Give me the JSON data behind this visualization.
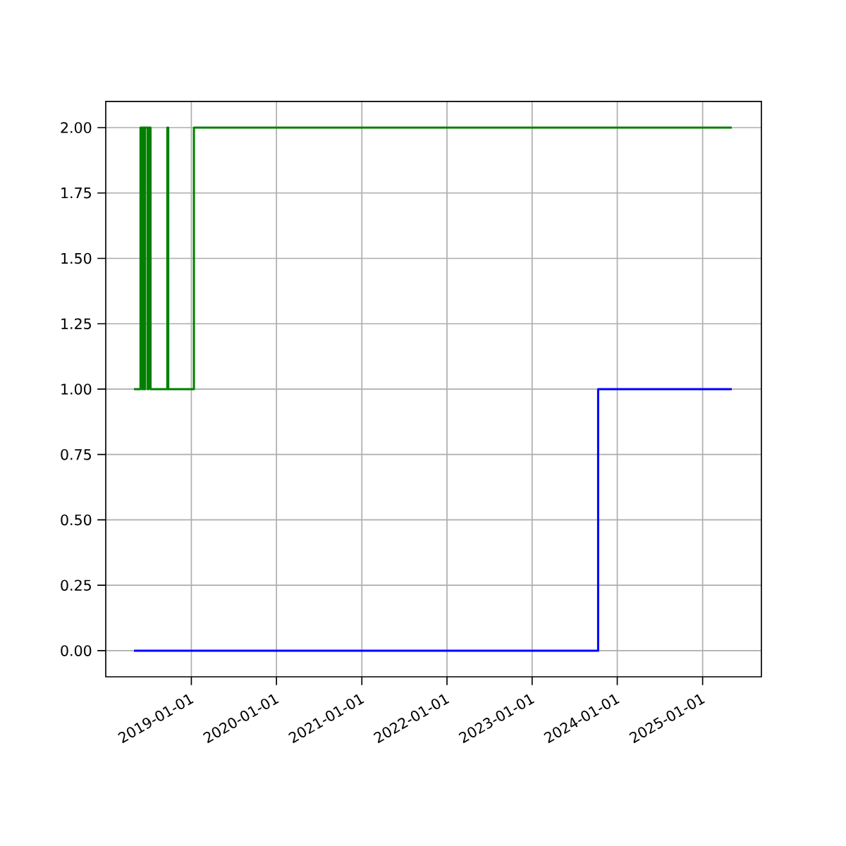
{
  "chart_data": {
    "type": "step",
    "grid": true,
    "xlim": [
      "2017-12-30",
      "2025-09-10"
    ],
    "ylim": [
      -0.1,
      2.1
    ],
    "xticks": [
      "2019-01-01",
      "2020-01-01",
      "2021-01-01",
      "2022-01-01",
      "2023-01-01",
      "2024-01-01",
      "2025-01-01"
    ],
    "yticks": [
      {
        "value": 0,
        "label": "0.00"
      },
      {
        "value": 0.25,
        "label": "0.25"
      },
      {
        "value": 0.5,
        "label": "0.50"
      },
      {
        "value": 0.75,
        "label": "0.75"
      },
      {
        "value": 1,
        "label": "1.00"
      },
      {
        "value": 1.25,
        "label": "1.25"
      },
      {
        "value": 1.5,
        "label": "1.50"
      },
      {
        "value": 1.75,
        "label": "1.75"
      },
      {
        "value": 2,
        "label": "2.00"
      }
    ],
    "series": [
      {
        "color": "#0000ff",
        "x": [
          "2018-04-30",
          "2023-10-11",
          "2025-05-06"
        ],
        "values": [
          0,
          1,
          1
        ]
      },
      {
        "color": "#008000",
        "x": [
          "2018-04-30",
          "2018-05-28",
          "2018-06-05",
          "2018-06-08",
          "2018-06-14",
          "2018-06-17",
          "2018-06-28",
          "2018-07-01",
          "2018-07-10",
          "2018-09-20",
          "2018-09-24",
          "2019-01-12",
          "2025-05-06"
        ],
        "values": [
          1,
          2,
          1,
          2,
          1,
          2,
          1,
          2,
          1,
          2,
          1,
          2,
          2
        ]
      }
    ]
  }
}
